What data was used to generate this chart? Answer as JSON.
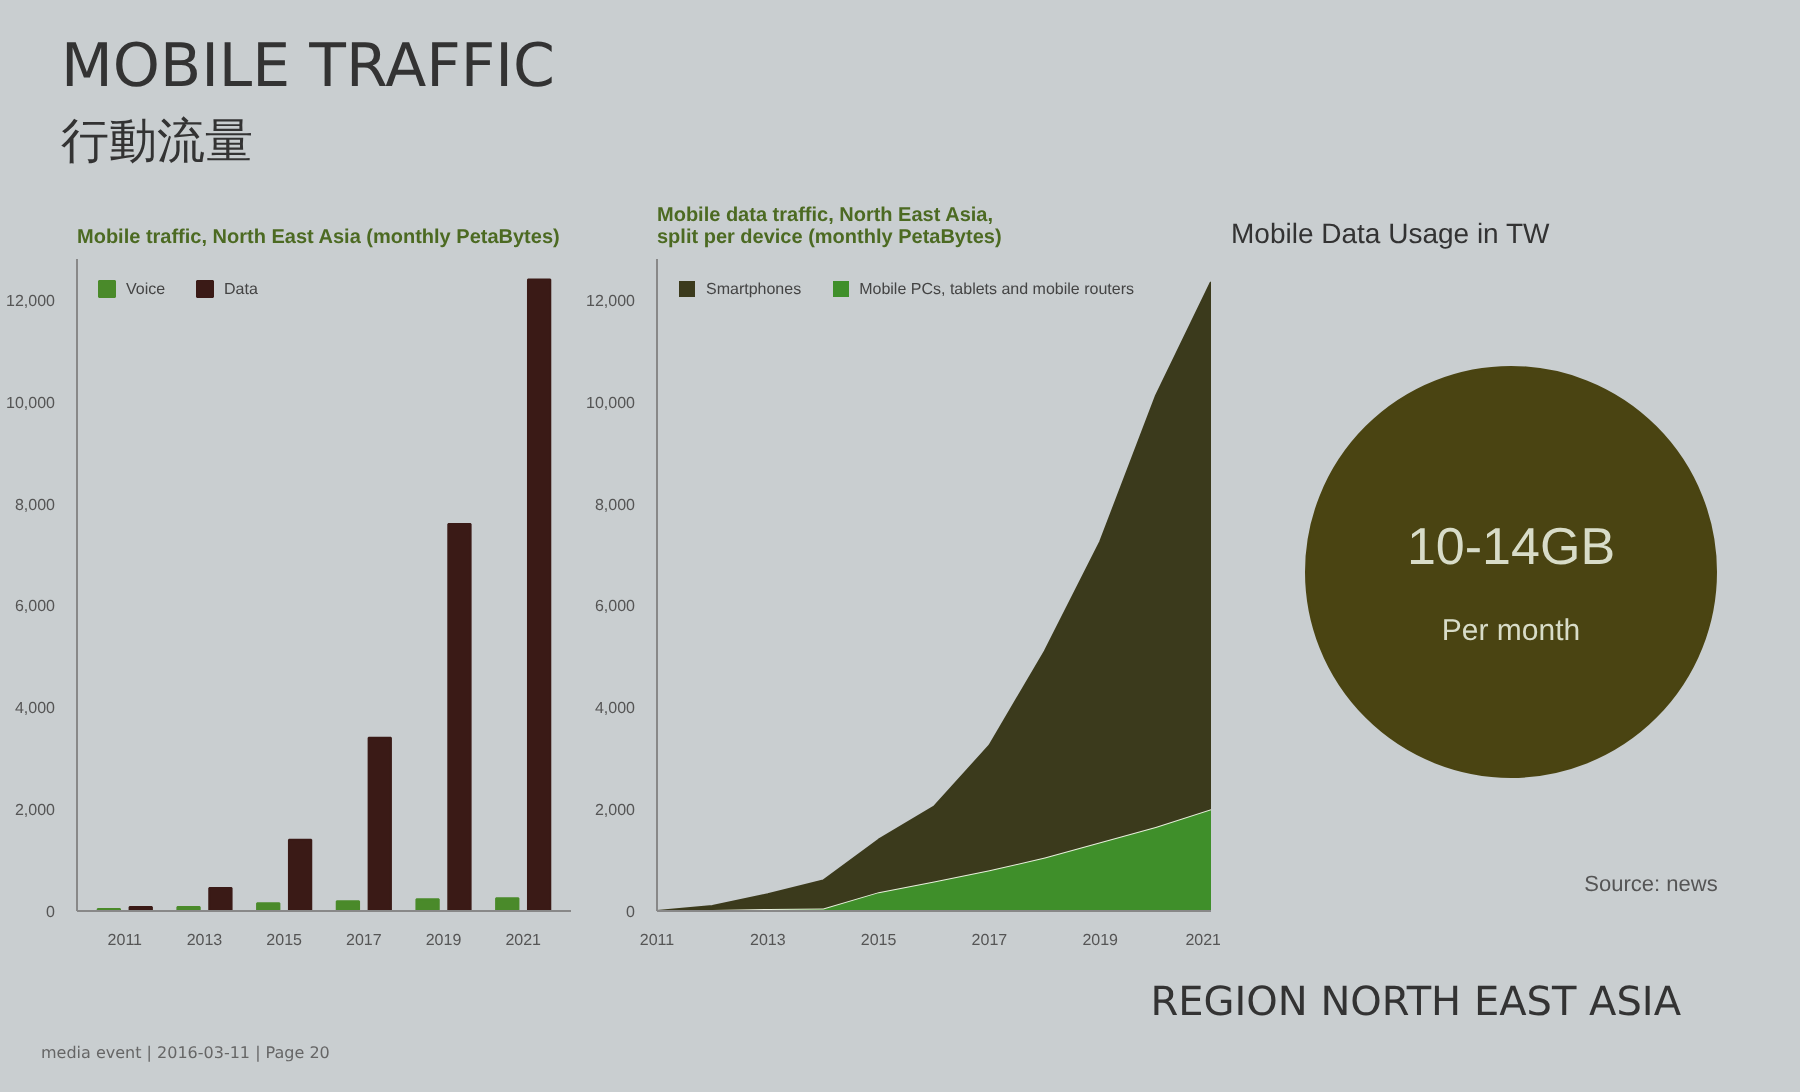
{
  "chart_data": [
    {
      "type": "bar",
      "title": "Mobile traffic, North East Asia (monthly PetaBytes)",
      "categories": [
        "2011",
        "2013",
        "2015",
        "2017",
        "2019",
        "2021"
      ],
      "series": [
        {
          "name": "Voice",
          "color": "#4a8a2a",
          "values": [
            40,
            80,
            150,
            190,
            230,
            250
          ]
        },
        {
          "name": "Data",
          "color": "#3a1a16",
          "values": [
            80,
            450,
            1400,
            3400,
            7600,
            12400
          ]
        }
      ],
      "ylim": [
        0,
        12800
      ],
      "yticks": [
        {
          "value": 0,
          "label": "0"
        },
        {
          "value": 2000,
          "label": "2,000"
        },
        {
          "value": 4000,
          "label": "4,000"
        },
        {
          "value": 6000,
          "label": "6,000"
        },
        {
          "value": 8000,
          "label": "8,000"
        },
        {
          "value": 10000,
          "label": "10,000"
        },
        {
          "value": 12000,
          "label": "12,000"
        }
      ],
      "grid": false,
      "legend": "top left",
      "annotations": [
        "MOBILE TRAFFIC",
        "行動流量",
        "REGION NORTH EAST ASIA",
        "media event | 2016-03-11 | Page 20"
      ]
    },
    {
      "type": "area",
      "stacked": true,
      "title": "Mobile data traffic, North East Asia,\nsplit per device (monthly PetaBytes)",
      "x": [
        2011,
        2012,
        2013,
        2014,
        2015,
        2016,
        2017,
        2018,
        2019,
        2020,
        2021
      ],
      "series": [
        {
          "name": "Mobile PCs, tablets and mobile routers",
          "color": "#3f8f2a",
          "values": [
            0,
            20,
            40,
            50,
            370,
            580,
            800,
            1050,
            1350,
            1650,
            2000
          ]
        },
        {
          "name": "Smartphones",
          "color": "#3b3a1c",
          "values": [
            0,
            80,
            290,
            550,
            1030,
            1470,
            2450,
            4050,
            5900,
            8450,
            10350
          ]
        }
      ],
      "xlim": [
        2011,
        2021
      ],
      "xticks": [
        2011,
        2013,
        2015,
        2017,
        2019,
        2021
      ],
      "ylim": [
        0,
        12800
      ],
      "yticks": [
        {
          "value": 0,
          "label": "0"
        },
        {
          "value": 2000,
          "label": "2,000"
        },
        {
          "value": 4000,
          "label": "4,000"
        },
        {
          "value": 6000,
          "label": "6,000"
        },
        {
          "value": 8000,
          "label": "8,000"
        },
        {
          "value": 10000,
          "label": "10,000"
        },
        {
          "value": 12000,
          "label": "12,000"
        }
      ],
      "grid": false,
      "legend": "top left"
    },
    {
      "type": "other",
      "title": "Mobile Data Usage in TW",
      "annotations": [
        "10-14GB",
        "Per month",
        "Source: news"
      ]
    }
  ]
}
